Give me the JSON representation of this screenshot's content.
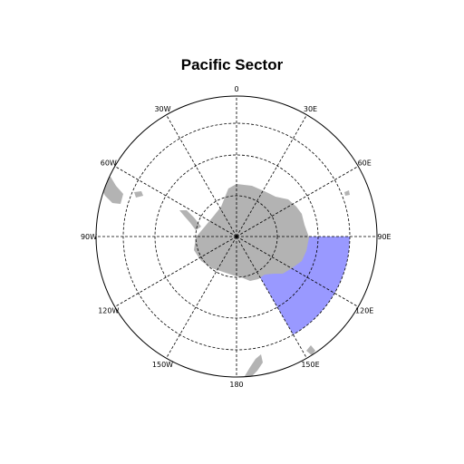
{
  "map": {
    "title": "Pacific Sector",
    "projection": "south-polar-stereographic",
    "longitude_labels": [
      {
        "lon": 0,
        "text": "0"
      },
      {
        "lon": 30,
        "text": "30E"
      },
      {
        "lon": 60,
        "text": "60E"
      },
      {
        "lon": 90,
        "text": "90E"
      },
      {
        "lon": 120,
        "text": "120E"
      },
      {
        "lon": 150,
        "text": "150E"
      },
      {
        "lon": 180,
        "text": "180"
      },
      {
        "lon": -150,
        "text": "150W"
      },
      {
        "lon": -120,
        "text": "120W"
      },
      {
        "lon": -90,
        "text": "90W"
      },
      {
        "lon": -60,
        "text": "60W"
      },
      {
        "lon": -30,
        "text": "30W"
      }
    ],
    "highlight_region": {
      "lon_min": 90,
      "lon_max": 150,
      "color": "#9999ff"
    },
    "land_color": "#b3b3b3",
    "graticule": "dashed"
  }
}
